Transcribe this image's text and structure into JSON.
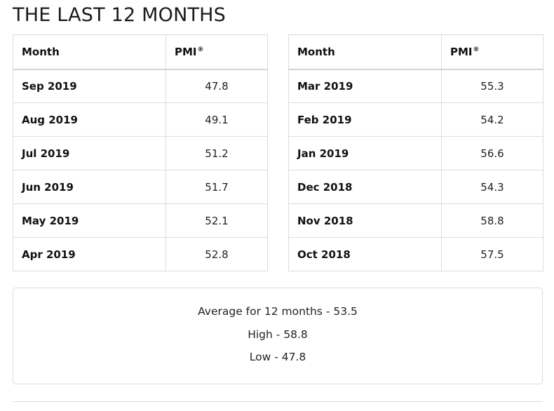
{
  "page": {
    "title": "THE LAST 12 MONTHS"
  },
  "tables": {
    "header_month": "Month",
    "header_pmi": "PMI",
    "header_pmi_mark": "®",
    "left": [
      {
        "month": "Sep 2019",
        "pmi": "47.8"
      },
      {
        "month": "Aug 2019",
        "pmi": "49.1"
      },
      {
        "month": "Jul 2019",
        "pmi": "51.2"
      },
      {
        "month": "Jun 2019",
        "pmi": "51.7"
      },
      {
        "month": "May 2019",
        "pmi": "52.1"
      },
      {
        "month": "Apr 2019",
        "pmi": "52.8"
      }
    ],
    "right": [
      {
        "month": "Mar 2019",
        "pmi": "55.3"
      },
      {
        "month": "Feb 2019",
        "pmi": "54.2"
      },
      {
        "month": "Jan 2019",
        "pmi": "56.6"
      },
      {
        "month": "Dec 2018",
        "pmi": "54.3"
      },
      {
        "month": "Nov 2018",
        "pmi": "58.8"
      },
      {
        "month": "Oct 2018",
        "pmi": "57.5"
      }
    ]
  },
  "summary": {
    "average": "Average for 12 months - 53.5",
    "high": "High - 58.8",
    "low": "Low - 47.8"
  },
  "colors": {
    "text": "#111111",
    "border": "#dcdcdc"
  }
}
